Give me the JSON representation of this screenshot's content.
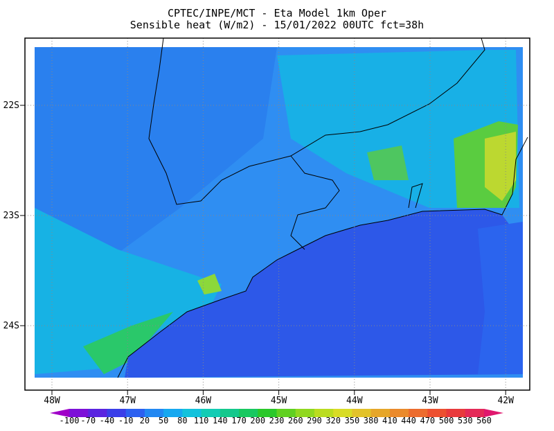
{
  "title": [
    "CPTEC/INPE/MCT -  Eta Model 1km Oper",
    "Sensible heat (W/m2) - 15/01/2022 00UTC fct=38h"
  ],
  "map": {
    "lon_ticks": [
      "48W",
      "47W",
      "46W",
      "45W",
      "44W",
      "43W",
      "42W"
    ],
    "lat_ticks": [
      "22S",
      "23S",
      "24S"
    ]
  },
  "colorbar": {
    "labels": [
      -100,
      -70,
      -40,
      -10,
      20,
      50,
      80,
      110,
      140,
      170,
      200,
      230,
      260,
      290,
      320,
      350,
      380,
      410,
      440,
      470,
      500,
      530,
      560
    ],
    "colors": [
      "#a000c8",
      "#7d10d8",
      "#5a24e0",
      "#3a3ee8",
      "#2c60f0",
      "#2288f2",
      "#16a8f0",
      "#12c2dc",
      "#12ccb4",
      "#14c88c",
      "#18c860",
      "#2ac82a",
      "#60d020",
      "#90d820",
      "#badc20",
      "#d8dc26",
      "#e2c22a",
      "#e6a62a",
      "#ea8a2c",
      "#ec6c2e",
      "#ec5030",
      "#e83a3c",
      "#e42a58",
      "#e0186e"
    ]
  }
}
